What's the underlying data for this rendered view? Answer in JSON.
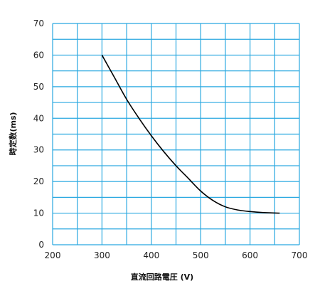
{
  "chart_data": {
    "type": "line",
    "title": "",
    "xlabel": "直流回路電圧 (V)",
    "ylabel": "時定数(ms)",
    "xlim": [
      200,
      700
    ],
    "ylim": [
      0,
      70
    ],
    "x_ticks": [
      200,
      300,
      400,
      500,
      600,
      700
    ],
    "y_ticks": [
      0,
      10,
      20,
      30,
      40,
      50,
      60,
      70
    ],
    "x_minor_step": 50,
    "y_minor_step": 5,
    "grid": true,
    "grid_color": "#29a8e0",
    "line_color": "#000000",
    "series": [
      {
        "x": [
          300,
          325,
          350,
          375,
          400,
          425,
          450,
          475,
          500,
          525,
          550,
          575,
          600,
          625,
          660
        ],
        "y": [
          60,
          53,
          46,
          40,
          34.5,
          29.5,
          25,
          21,
          17,
          14,
          12,
          11,
          10.5,
          10.2,
          10
        ]
      }
    ]
  }
}
